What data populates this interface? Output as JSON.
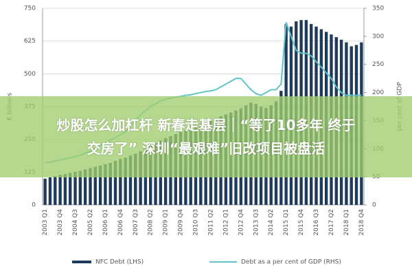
{
  "chart_data": {
    "type": "bar_line",
    "categories": [
      "2003 Q1",
      null,
      null,
      "2003 Q4",
      null,
      null,
      "2004 Q3",
      null,
      null,
      "2005 Q2",
      null,
      null,
      "2006 Q1",
      null,
      null,
      "2006 Q4",
      null,
      null,
      "2007 Q3",
      null,
      null,
      "2008 Q2",
      null,
      null,
      "2009 Q1",
      null,
      null,
      "2009 Q4",
      null,
      null,
      "2010 Q3",
      null,
      null,
      "2011 Q2",
      null,
      null,
      "2012 Q1",
      null,
      null,
      "2012 Q4",
      null,
      null,
      "2013 Q3",
      null,
      null,
      "2014 Q2",
      null,
      null,
      "2015 Q1",
      null,
      null,
      "2015 Q4",
      null,
      null,
      "2016 Q3",
      null,
      null,
      "2017 Q2",
      null,
      null,
      "2018 Q1",
      null,
      null,
      "2018 Q4"
    ],
    "series": [
      {
        "name": "NFC Debt (LHS)",
        "color": "#1f3b5c",
        "axis": "y",
        "values": [
          100,
          105,
          110,
          115,
          118,
          122,
          126,
          130,
          135,
          140,
          145,
          150,
          155,
          160,
          168,
          175,
          180,
          188,
          195,
          205,
          215,
          225,
          235,
          245,
          255,
          262,
          270,
          278,
          285,
          292,
          300,
          308,
          315,
          322,
          330,
          338,
          345,
          352,
          360,
          368,
          380,
          390,
          385,
          375,
          370,
          380,
          395,
          435,
          690,
          680,
          700,
          705,
          705,
          690,
          680,
          670,
          660,
          650,
          640,
          630,
          620,
          605,
          610,
          620
        ]
      },
      {
        "name": "Debt as a per cent of GDP (RHS)",
        "color": "#5fc4c8",
        "axis": "y2",
        "values": [
          75,
          76,
          78,
          80,
          82,
          84,
          86,
          88,
          92,
          95,
          100,
          105,
          110,
          115,
          120,
          125,
          130,
          140,
          150,
          160,
          168,
          175,
          180,
          185,
          188,
          190,
          192,
          193,
          195,
          196,
          198,
          200,
          202,
          203,
          205,
          210,
          215,
          220,
          225,
          225,
          215,
          205,
          198,
          195,
          200,
          205,
          205,
          215,
          325,
          300,
          275,
          270,
          270,
          265,
          255,
          245,
          235,
          225,
          210,
          200,
          195,
          195,
          195,
          195
        ]
      }
    ],
    "ylabel": "€ billions",
    "y2label": "per cent of GDP",
    "ylim": [
      0,
      750
    ],
    "yticks": [
      0,
      125,
      250,
      375,
      500,
      625,
      750
    ],
    "y2lim": [
      0,
      350
    ],
    "y2ticks": [
      0,
      50,
      100,
      150,
      200,
      250,
      300,
      350
    ],
    "grid": true,
    "legend": "bottom"
  },
  "overlay": {
    "lines": [
      "炒股怎么加杠杆 新春走基层｜“等了10多年 终于",
      "交房了” 深圳“最艰难”旧改项目被盘活"
    ]
  }
}
